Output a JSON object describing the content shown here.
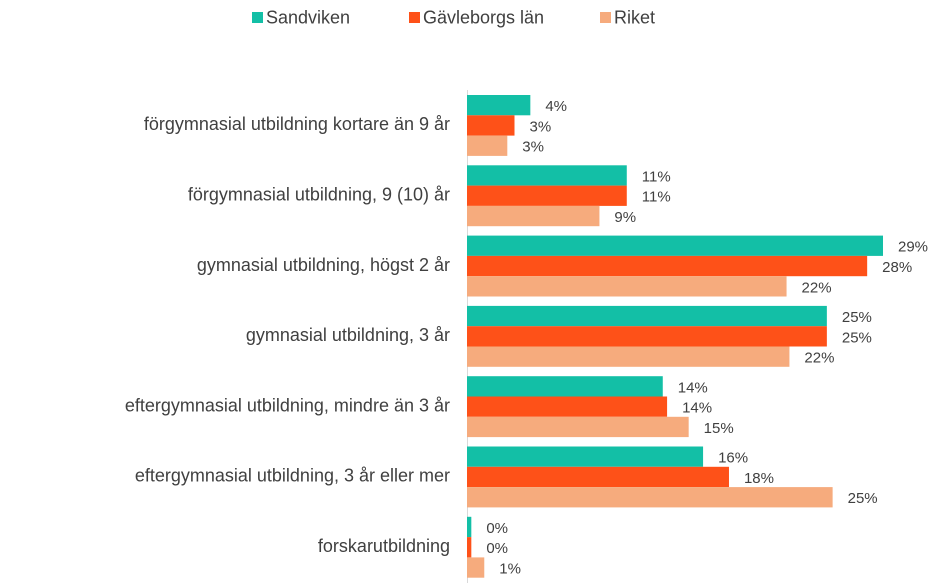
{
  "chart_data": {
    "type": "bar",
    "orientation": "horizontal",
    "categories": [
      "förgymnasial utbildning kortare än 9 år",
      "förgymnasial utbildning, 9 (10) år",
      "gymnasial utbildning, högst 2 år",
      "gymnasial utbildning, 3 år",
      "eftergymnasial utbildning, mindre än 3 år",
      "eftergymnasial utbildning, 3 år eller mer",
      "forskarutbildning"
    ],
    "series": [
      {
        "name": "Sandviken",
        "color": "#13bfa6",
        "values": [
          4.4,
          11.1,
          28.9,
          25.0,
          13.6,
          16.4,
          0.3
        ],
        "value_labels": [
          "4%",
          "11%",
          "29%",
          "25%",
          "14%",
          "16%",
          "0%"
        ]
      },
      {
        "name": "Gävleborgs län",
        "color": "#fe5118",
        "values": [
          3.3,
          11.1,
          27.8,
          25.0,
          13.9,
          18.2,
          0.3
        ],
        "value_labels": [
          "3%",
          "11%",
          "28%",
          "25%",
          "14%",
          "18%",
          "0%"
        ]
      },
      {
        "name": "Riket",
        "color": "#f6ab7d",
        "values": [
          2.8,
          9.2,
          22.2,
          22.4,
          15.4,
          25.4,
          1.2
        ],
        "value_labels": [
          "3%",
          "9%",
          "22%",
          "22%",
          "15%",
          "25%",
          "1%"
        ]
      }
    ],
    "legend": "top"
  }
}
